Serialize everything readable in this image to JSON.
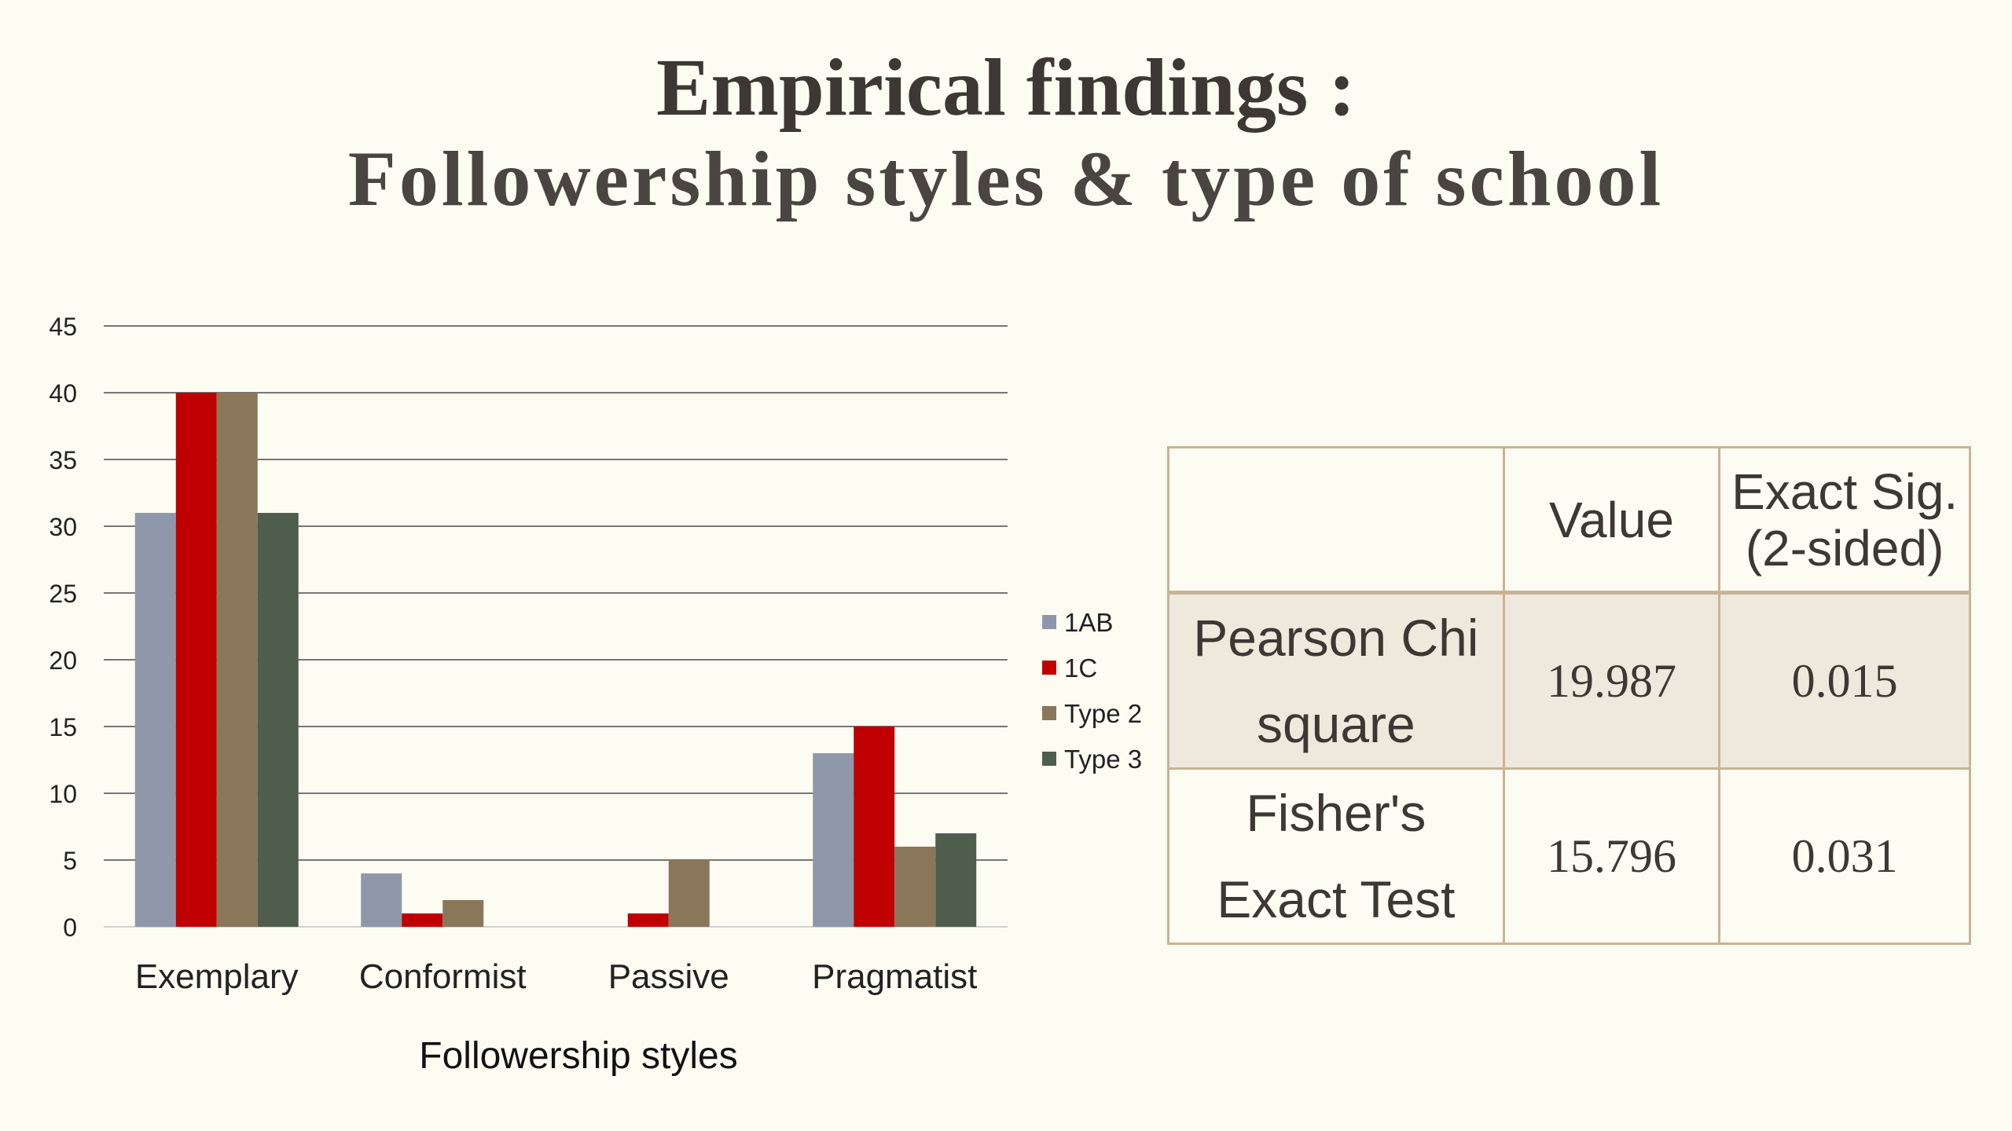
{
  "slide": {
    "title": "Empirical findings :",
    "subtitle": "Followership styles & type of school"
  },
  "chart_data": {
    "type": "bar",
    "categories": [
      "Exemplary",
      "Conformist",
      "Passive",
      "Pragmatist"
    ],
    "series": [
      {
        "name": "1AB",
        "values": [
          31,
          4,
          0,
          13
        ],
        "color": "#8f98ab"
      },
      {
        "name": "1C",
        "values": [
          40,
          1,
          1,
          15
        ],
        "color": "#c00000"
      },
      {
        "name": "Type  2",
        "values": [
          40,
          2,
          5,
          6
        ],
        "color": "#8a775a"
      },
      {
        "name": "Type  3",
        "values": [
          31,
          0,
          0,
          7
        ],
        "color": "#4f5d4d"
      }
    ],
    "yticks": [
      0,
      5,
      10,
      15,
      20,
      25,
      30,
      35,
      40,
      45
    ],
    "ylim": [
      0,
      45
    ],
    "xlabel": "Followership styles",
    "ylabel": "",
    "grid": true,
    "legend_position": "right"
  },
  "table": {
    "headers": [
      "",
      "Value",
      "Exact Sig.\n(2-sided)"
    ],
    "rows": [
      {
        "label": "Pearson Chi square",
        "value": "19.987",
        "sig": "0.015"
      },
      {
        "label": "Fisher's Exact Test",
        "value": "15.796",
        "sig": "0.031"
      }
    ]
  }
}
